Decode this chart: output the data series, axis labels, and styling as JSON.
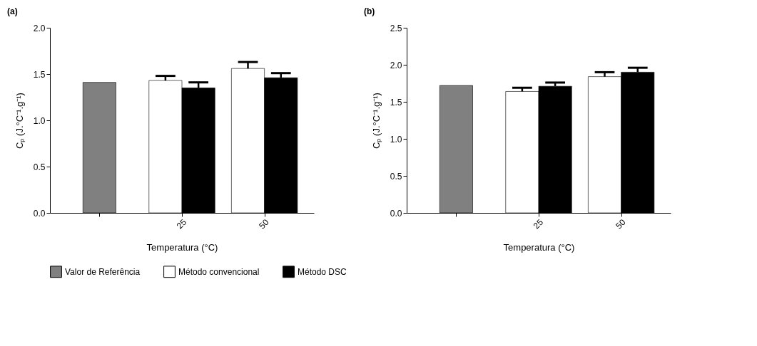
{
  "chart_data": [
    {
      "type": "bar",
      "title": "(a)",
      "xlabel": "Temperatura (°C)",
      "ylabel": "Cₚ (J.°C⁻¹.g⁻¹)",
      "categories": [
        null,
        "25",
        "50"
      ],
      "ylim": [
        0,
        2.0
      ],
      "yticks": [
        {
          "value": 0,
          "label": "0.0"
        },
        0.5,
        {
          "value": 1,
          "label": "1.0"
        },
        1.5,
        {
          "value": 2,
          "label": "2.0"
        }
      ],
      "grid": false,
      "legend": "bottom",
      "series": [
        {
          "name": "Valor de Referência",
          "color": "#808080",
          "values": [
            1.41,
            null,
            null
          ]
        },
        {
          "name": "Método convencional",
          "color": "#ffffff",
          "values": [
            null,
            1.43,
            1.56
          ],
          "errors": [
            null,
            [
              1.43,
              1.48
            ],
            [
              1.56,
              1.63
            ]
          ]
        },
        {
          "name": "Método DSC",
          "color": "#000000",
          "values": [
            null,
            1.35,
            1.46
          ],
          "errors": [
            null,
            [
              1.35,
              1.41
            ],
            [
              1.46,
              1.51
            ]
          ]
        }
      ]
    },
    {
      "type": "bar",
      "title": "(b)",
      "xlabel": "Temperatura (°C)",
      "ylabel": "Cₚ (J.°C⁻¹.g⁻¹)",
      "categories": [
        null,
        "25",
        "50"
      ],
      "ylim": [
        0,
        2.5
      ],
      "yticks": [
        {
          "value": 0,
          "label": "0.0"
        },
        0.5,
        {
          "value": 1,
          "label": "1.0"
        },
        1.5,
        {
          "value": 2,
          "label": "2.0"
        },
        2.5
      ],
      "grid": false,
      "legend": "bottom",
      "series": [
        {
          "name": "Valor de Referência",
          "color": "#808080",
          "values": [
            1.72,
            null,
            null
          ]
        },
        {
          "name": "Método convencional",
          "color": "#ffffff",
          "values": [
            null,
            1.64,
            1.84
          ],
          "errors": [
            null,
            [
              1.64,
              1.69
            ],
            [
              1.84,
              1.9
            ]
          ]
        },
        {
          "name": "Método DSC",
          "color": "#000000",
          "values": [
            null,
            1.71,
            1.9
          ],
          "errors": [
            null,
            [
              1.71,
              1.76
            ],
            [
              1.9,
              1.96
            ]
          ]
        }
      ]
    }
  ]
}
